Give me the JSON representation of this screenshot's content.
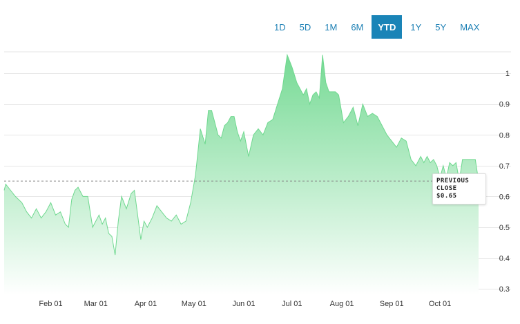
{
  "range_selector": {
    "options": [
      "1D",
      "5D",
      "1M",
      "6M",
      "YTD",
      "1Y",
      "5Y",
      "MAX"
    ],
    "active": "YTD"
  },
  "tooltip": {
    "line1": "PREVIOUS",
    "line2": "CLOSE",
    "line3": "$0.65"
  },
  "colors": {
    "fill_top": "#6fd88f",
    "fill_bottom": "#ffffff",
    "stroke": "#6fd88f",
    "accent": "#1a84b7",
    "previous_close_line": "#888888"
  },
  "chart_data": {
    "type": "area",
    "title": "",
    "xlabel": "",
    "ylabel": "",
    "ylim": [
      0.28,
      1.07
    ],
    "y_ticks": [
      0.3,
      0.4,
      0.5,
      0.6,
      0.7,
      0.8,
      0.9,
      1
    ],
    "y_tick_labels": [
      "0.3",
      "0.4",
      "0.5",
      "0.6",
      "0.7",
      "0.8",
      "0.9",
      "1"
    ],
    "x_ticks": [
      "2023-02-01",
      "2023-03-01",
      "2023-04-01",
      "2023-05-01",
      "2023-06-01",
      "2023-07-01",
      "2023-08-01",
      "2023-09-01",
      "2023-10-01"
    ],
    "x_tick_labels": [
      "Feb 01",
      "Mar 01",
      "Apr 01",
      "May 01",
      "Jun 01",
      "Jul 01",
      "Aug 01",
      "Sep 01",
      "Oct 01"
    ],
    "xlim": [
      "2023-01-03",
      "2023-10-25"
    ],
    "grid": true,
    "previous_close": 0.65,
    "series": [
      {
        "x": [
          "2023-01-03",
          "2023-01-04",
          "2023-01-07",
          "2023-01-10",
          "2023-01-14",
          "2023-01-17",
          "2023-01-20",
          "2023-01-23",
          "2023-01-26",
          "2023-01-29",
          "2023-02-01",
          "2023-02-04",
          "2023-02-07",
          "2023-02-10",
          "2023-02-12",
          "2023-02-14",
          "2023-02-16",
          "2023-02-18",
          "2023-02-21",
          "2023-02-24",
          "2023-02-27",
          "2023-03-01",
          "2023-03-03",
          "2023-03-05",
          "2023-03-07",
          "2023-03-09",
          "2023-03-11",
          "2023-03-13",
          "2023-03-15",
          "2023-03-17",
          "2023-03-20",
          "2023-03-23",
          "2023-03-25",
          "2023-03-27",
          "2023-03-29",
          "2023-03-31",
          "2023-04-02",
          "2023-04-05",
          "2023-04-08",
          "2023-04-11",
          "2023-04-14",
          "2023-04-17",
          "2023-04-20",
          "2023-04-23",
          "2023-04-26",
          "2023-04-29",
          "2023-05-02",
          "2023-05-05",
          "2023-05-08",
          "2023-05-10",
          "2023-05-12",
          "2023-05-14",
          "2023-05-16",
          "2023-05-18",
          "2023-05-20",
          "2023-05-22",
          "2023-05-24",
          "2023-05-26",
          "2023-05-28",
          "2023-05-30",
          "2023-06-01",
          "2023-06-04",
          "2023-06-07",
          "2023-06-10",
          "2023-06-13",
          "2023-06-16",
          "2023-06-19",
          "2023-06-22",
          "2023-06-25",
          "2023-06-28",
          "2023-07-01",
          "2023-07-04",
          "2023-07-06",
          "2023-07-08",
          "2023-07-10",
          "2023-07-12",
          "2023-07-14",
          "2023-07-16",
          "2023-07-18",
          "2023-07-20",
          "2023-07-22",
          "2023-07-24",
          "2023-07-26",
          "2023-07-28",
          "2023-07-30",
          "2023-08-02",
          "2023-08-05",
          "2023-08-08",
          "2023-08-11",
          "2023-08-14",
          "2023-08-17",
          "2023-08-20",
          "2023-08-23",
          "2023-08-26",
          "2023-08-29",
          "2023-09-01",
          "2023-09-04",
          "2023-09-07",
          "2023-09-10",
          "2023-09-13",
          "2023-09-16",
          "2023-09-19",
          "2023-09-21",
          "2023-09-23",
          "2023-09-25",
          "2023-09-27",
          "2023-09-29",
          "2023-10-01",
          "2023-10-03",
          "2023-10-05",
          "2023-10-07",
          "2023-10-09",
          "2023-10-11",
          "2023-10-13",
          "2023-10-15",
          "2023-10-17",
          "2023-10-19",
          "2023-10-21",
          "2023-10-23",
          "2023-10-25"
        ],
        "values": [
          0.62,
          0.64,
          0.62,
          0.6,
          0.58,
          0.55,
          0.53,
          0.56,
          0.53,
          0.55,
          0.58,
          0.54,
          0.55,
          0.51,
          0.5,
          0.59,
          0.62,
          0.63,
          0.6,
          0.6,
          0.5,
          0.52,
          0.54,
          0.51,
          0.53,
          0.48,
          0.47,
          0.41,
          0.52,
          0.6,
          0.56,
          0.61,
          0.62,
          0.54,
          0.46,
          0.52,
          0.5,
          0.53,
          0.57,
          0.55,
          0.53,
          0.52,
          0.54,
          0.51,
          0.52,
          0.58,
          0.67,
          0.82,
          0.77,
          0.88,
          0.88,
          0.84,
          0.8,
          0.79,
          0.83,
          0.84,
          0.86,
          0.86,
          0.81,
          0.78,
          0.81,
          0.73,
          0.8,
          0.82,
          0.8,
          0.84,
          0.85,
          0.9,
          0.95,
          1.06,
          1.02,
          0.97,
          0.95,
          0.93,
          0.95,
          0.9,
          0.93,
          0.94,
          0.92,
          1.06,
          0.97,
          0.94,
          0.94,
          0.94,
          0.93,
          0.84,
          0.86,
          0.89,
          0.83,
          0.9,
          0.86,
          0.87,
          0.86,
          0.83,
          0.8,
          0.78,
          0.76,
          0.79,
          0.78,
          0.72,
          0.7,
          0.73,
          0.71,
          0.73,
          0.71,
          0.72,
          0.7,
          0.66,
          0.7,
          0.66,
          0.71,
          0.7,
          0.71,
          0.65,
          0.72,
          0.72,
          0.72,
          0.72,
          0.72,
          0.65
        ]
      }
    ]
  }
}
